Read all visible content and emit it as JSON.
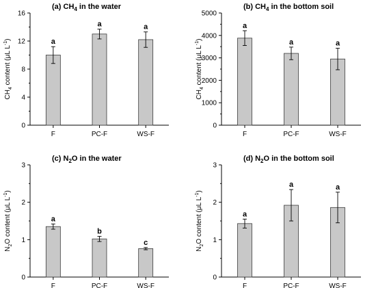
{
  "chart_data": [
    {
      "type": "bar",
      "title_prefix": "(a) CH",
      "title_sub": "4",
      "title_suffix": " in the water",
      "ylabel_prefix": "CH",
      "ylabel_sub": "4",
      "ylabel_main": " content (μL L",
      "ylabel_sup": "-1",
      "ylabel_end": ")",
      "categories": [
        "F",
        "PC-F",
        "WS-F"
      ],
      "values": [
        10.0,
        13.0,
        12.2
      ],
      "errors": [
        1.2,
        0.7,
        1.1
      ],
      "letters": [
        "a",
        "a",
        "a"
      ],
      "ylim": [
        0,
        16
      ],
      "yticks": [
        0,
        4,
        8,
        12,
        16
      ]
    },
    {
      "type": "bar",
      "title_prefix": "(b) CH",
      "title_sub": "4",
      "title_suffix": " in the bottom soil",
      "ylabel_prefix": "CH",
      "ylabel_sub": "4",
      "ylabel_main": " content (μL L",
      "ylabel_sup": "-1",
      "ylabel_end": ")",
      "categories": [
        "F",
        "PC-F",
        "WS-F"
      ],
      "values": [
        3880,
        3200,
        2950
      ],
      "errors": [
        330,
        280,
        480
      ],
      "letters": [
        "a",
        "a",
        "a"
      ],
      "ylim": [
        0,
        5000
      ],
      "yticks": [
        0,
        1000,
        2000,
        3000,
        4000,
        5000
      ]
    },
    {
      "type": "bar",
      "title_prefix": "(c) N",
      "title_sub": "2",
      "title_suffix": "O in the water",
      "ylabel_prefix": "N",
      "ylabel_sub": "2",
      "ylabel_main": "O content (μL L",
      "ylabel_sup": "-1",
      "ylabel_end": ")",
      "categories": [
        "F",
        "PC-F",
        "WS-F"
      ],
      "values": [
        1.35,
        1.02,
        0.76
      ],
      "errors": [
        0.07,
        0.07,
        0.03
      ],
      "letters": [
        "a",
        "b",
        "c"
      ],
      "ylim": [
        0,
        3
      ],
      "yticks": [
        0,
        1,
        2,
        3
      ]
    },
    {
      "type": "bar",
      "title_prefix": "(d) N",
      "title_sub": "2",
      "title_suffix": "O in the bottom soil",
      "ylabel_prefix": "N",
      "ylabel_sub": "2",
      "ylabel_main": "O content (μL L",
      "ylabel_sup": "-1",
      "ylabel_end": ")",
      "categories": [
        "F",
        "PC-F",
        "WS-F"
      ],
      "values": [
        1.43,
        1.92,
        1.86
      ],
      "errors": [
        0.12,
        0.42,
        0.41
      ],
      "letters": [
        "a",
        "a",
        "a"
      ],
      "ylim": [
        0,
        3
      ],
      "yticks": [
        0,
        1,
        2,
        3
      ]
    }
  ]
}
